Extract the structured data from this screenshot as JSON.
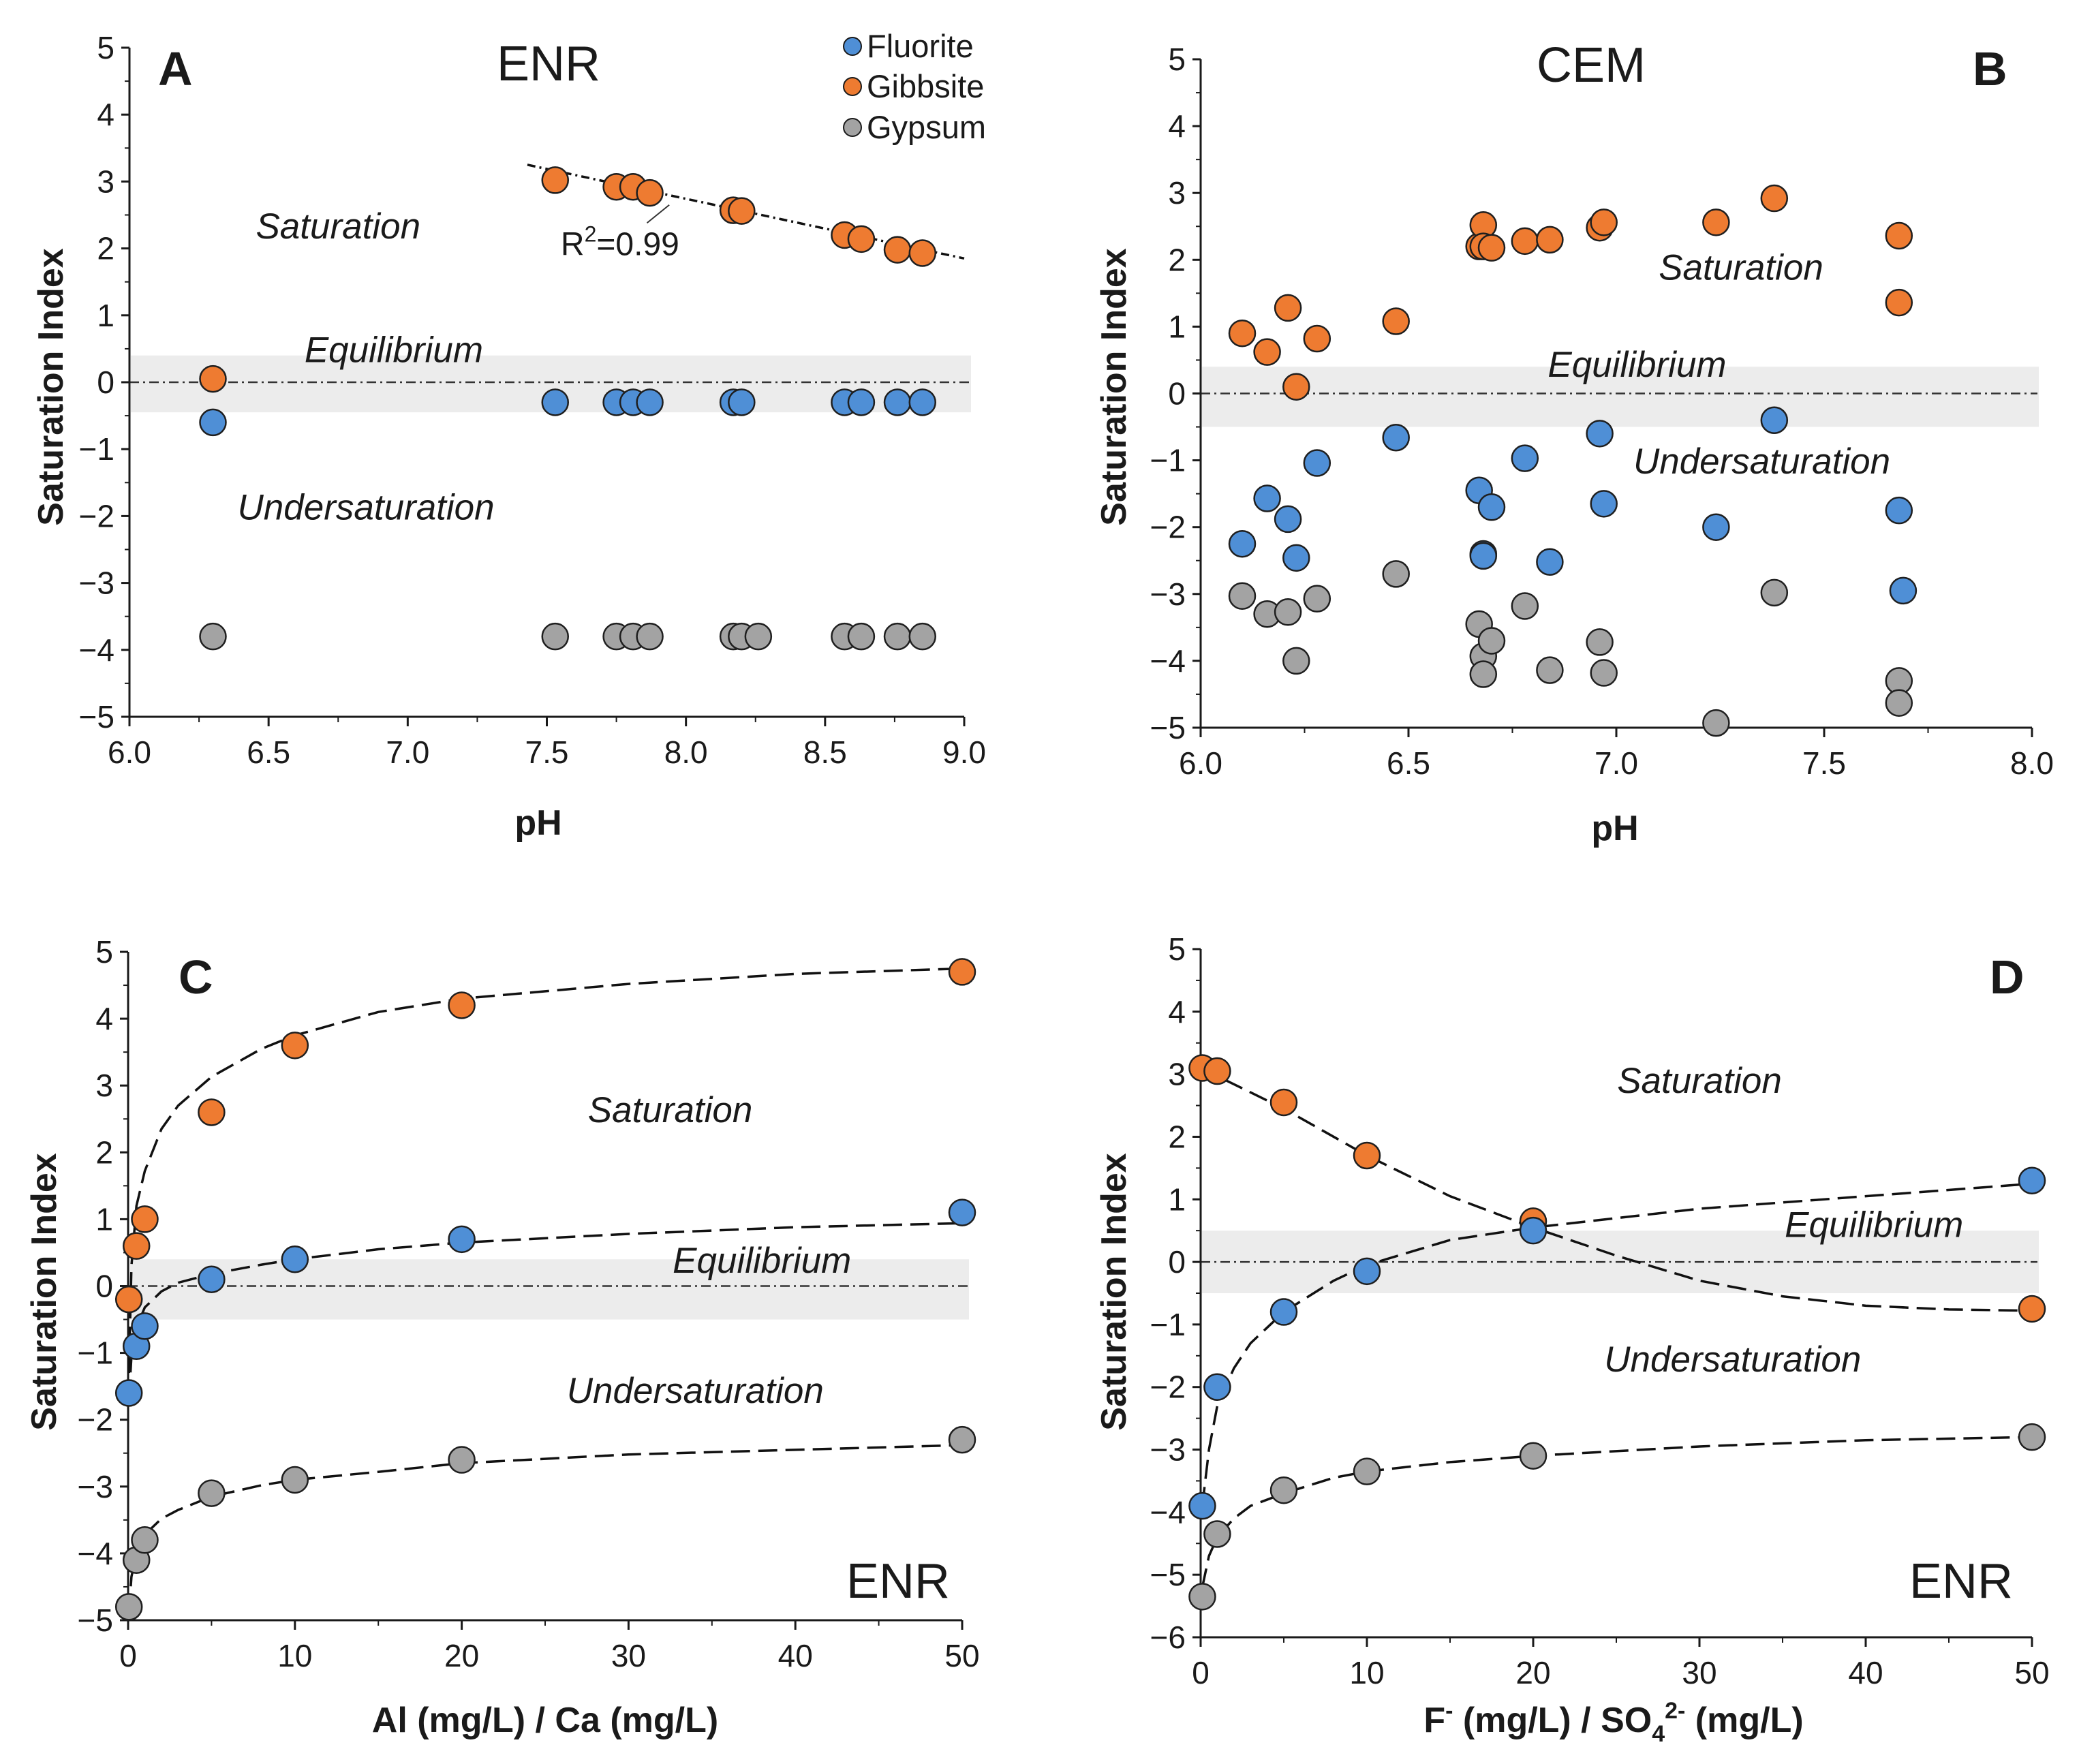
{
  "colors": {
    "fluorite": "#4f8fd6",
    "gibbsite": "#ee7b31",
    "gypsum": "#a3a3a3",
    "band": "#ececec",
    "axis": "#1a1a1a"
  },
  "legend": {
    "items": [
      {
        "name": "Fluorite",
        "color": "#4f8fd6"
      },
      {
        "name": "Gibbsite",
        "color": "#ee7b31"
      },
      {
        "name": "Gypsum",
        "color": "#a3a3a3"
      }
    ]
  },
  "chart_data": [
    {
      "panel": "A",
      "type": "scatter",
      "title": "ENR",
      "xlabel": "pH",
      "ylabel": "Saturation Index",
      "xlim": [
        6.0,
        9.0
      ],
      "ylim": [
        -5,
        5
      ],
      "xticks": [
        "6.0",
        "6.5",
        "7.0",
        "7.5",
        "8.0",
        "8.5",
        "9.0"
      ],
      "xtick_values": [
        6.0,
        6.5,
        7.0,
        7.5,
        8.0,
        8.5,
        9.0
      ],
      "yticks": [
        "5",
        "4",
        "3",
        "2",
        "1",
        "0",
        "−1",
        "−2",
        "−3",
        "−4",
        "−5"
      ],
      "ytick_values": [
        5,
        4,
        3,
        2,
        1,
        0,
        -1,
        -2,
        -3,
        -4,
        -5
      ],
      "band": [
        -0.45,
        0.4
      ],
      "zones": [
        {
          "label": "Saturation",
          "x": 6.75,
          "y": 2.15
        },
        {
          "label": "Equilibrium",
          "x": 6.95,
          "y": 0.3
        },
        {
          "label": "Undersaturation",
          "x": 6.85,
          "y": -2.05
        }
      ],
      "annotation": {
        "label": "R",
        "sup": "2",
        "suffix": "=0.99",
        "x": 7.55,
        "y": 1.9,
        "line_from": [
          7.94,
          2.65
        ],
        "line_to": [
          7.86,
          2.38
        ]
      },
      "fit_lines": [
        {
          "style": "dashdot",
          "x": [
            7.43,
            9.0
          ],
          "y": [
            3.25,
            1.85
          ]
        }
      ],
      "series": [
        {
          "name": "Gibbsite",
          "color": "#ee7b31",
          "x": [
            6.3,
            7.53,
            7.75,
            7.81,
            7.87,
            8.17,
            8.2,
            8.57,
            8.63,
            8.76,
            8.85
          ],
          "y": [
            0.05,
            3.02,
            2.92,
            2.92,
            2.83,
            2.57,
            2.56,
            2.2,
            2.14,
            1.98,
            1.93
          ]
        },
        {
          "name": "Fluorite",
          "color": "#4f8fd6",
          "x": [
            6.3,
            7.53,
            7.75,
            7.81,
            7.87,
            8.17,
            8.2,
            8.57,
            8.63,
            8.76,
            8.85
          ],
          "y": [
            -0.6,
            -0.3,
            -0.3,
            -0.3,
            -0.3,
            -0.3,
            -0.3,
            -0.3,
            -0.3,
            -0.3,
            -0.3
          ]
        },
        {
          "name": "Gypsum",
          "color": "#a3a3a3",
          "x": [
            6.3,
            7.53,
            7.75,
            7.81,
            7.87,
            8.17,
            8.2,
            8.26,
            8.57,
            8.63,
            8.76,
            8.85
          ],
          "y": [
            -3.8,
            -3.8,
            -3.8,
            -3.8,
            -3.8,
            -3.8,
            -3.8,
            -3.8,
            -3.8,
            -3.8,
            -3.8,
            -3.8
          ]
        }
      ]
    },
    {
      "panel": "B",
      "type": "scatter",
      "title": "CEM",
      "xlabel": "pH",
      "ylabel": "Saturation Index",
      "xlim": [
        6.0,
        8.0
      ],
      "ylim": [
        -5,
        5
      ],
      "xticks": [
        "6.0",
        "6.5",
        "7.0",
        "7.5",
        "8.0"
      ],
      "xtick_values": [
        6.0,
        6.5,
        7.0,
        7.5,
        8.0
      ],
      "yticks": [
        "5",
        "4",
        "3",
        "2",
        "1",
        "0",
        "−1",
        "−2",
        "−3",
        "−4",
        "−5"
      ],
      "ytick_values": [
        5,
        4,
        3,
        2,
        1,
        0,
        -1,
        -2,
        -3,
        -4,
        -5
      ],
      "band": [
        -0.5,
        0.4
      ],
      "zones": [
        {
          "label": "Saturation",
          "x": 7.3,
          "y": 1.7
        },
        {
          "label": "Equilibrium",
          "x": 7.05,
          "y": 0.25
        },
        {
          "label": "Undersaturation",
          "x": 7.35,
          "y": -1.2
        }
      ],
      "fit_lines": [],
      "series": [
        {
          "name": "Gibbsite",
          "color": "#ee7b31",
          "x": [
            6.1,
            6.16,
            6.21,
            6.23,
            6.28,
            6.47,
            6.67,
            6.68,
            6.68,
            6.7,
            6.78,
            6.84,
            6.96,
            6.97,
            7.24,
            7.38,
            7.68,
            7.68
          ],
          "y": [
            0.9,
            0.62,
            1.28,
            0.1,
            0.82,
            1.08,
            2.2,
            2.52,
            2.2,
            2.18,
            2.28,
            2.3,
            2.48,
            2.56,
            2.56,
            2.92,
            2.36,
            1.36
          ]
        },
        {
          "name": "Fluorite",
          "color": "#4f8fd6",
          "x": [
            6.1,
            6.16,
            6.21,
            6.23,
            6.28,
            6.47,
            6.67,
            6.68,
            6.68,
            6.7,
            6.78,
            6.84,
            6.96,
            6.97,
            7.24,
            7.38,
            7.68,
            7.69
          ],
          "y": [
            -2.25,
            -1.57,
            -1.88,
            -2.46,
            -1.04,
            -0.66,
            -1.45,
            -2.4,
            -2.43,
            -1.7,
            -0.97,
            -2.52,
            -0.6,
            -1.65,
            -2.0,
            -0.4,
            -1.75,
            -2.95
          ]
        },
        {
          "name": "Gypsum",
          "color": "#a3a3a3",
          "x": [
            6.1,
            6.16,
            6.21,
            6.23,
            6.28,
            6.47,
            6.67,
            6.68,
            6.68,
            6.7,
            6.78,
            6.84,
            6.96,
            6.97,
            7.24,
            7.38,
            7.68,
            7.68
          ],
          "y": [
            -3.03,
            -3.3,
            -3.27,
            -4.0,
            -3.07,
            -2.7,
            -3.45,
            -3.93,
            -4.2,
            -3.7,
            -3.18,
            -4.14,
            -3.72,
            -4.18,
            -4.93,
            -2.98,
            -4.3,
            -4.63
          ]
        }
      ]
    },
    {
      "panel": "C",
      "type": "scatter",
      "title": "ENR",
      "xlabel": "Al (mg/L) / Ca (mg/L)",
      "ylabel": "Saturation Index",
      "xlim": [
        0,
        50
      ],
      "ylim": [
        -5,
        5
      ],
      "xticks": [
        "0",
        "10",
        "20",
        "30",
        "40",
        "50"
      ],
      "xtick_values": [
        0,
        10,
        20,
        30,
        40,
        50
      ],
      "yticks": [
        "5",
        "4",
        "3",
        "2",
        "1",
        "0",
        "−1",
        "−2",
        "−3",
        "−4",
        "−5"
      ],
      "ytick_values": [
        5,
        4,
        3,
        2,
        1,
        0,
        -1,
        -2,
        -3,
        -4,
        -5
      ],
      "band": [
        -0.5,
        0.4
      ],
      "zones": [
        {
          "label": "Saturation",
          "x": 32.5,
          "y": 2.45
        },
        {
          "label": "Equilibrium",
          "x": 38.0,
          "y": 0.2
        },
        {
          "label": "Undersaturation",
          "x": 34.0,
          "y": -1.75
        }
      ],
      "fit_lines": [
        {
          "style": "dashed",
          "x": [
            0.05,
            0.2,
            0.5,
            1,
            2,
            3,
            5,
            8,
            10,
            15,
            20,
            30,
            40,
            50
          ],
          "y": [
            -1.3,
            0.3,
            1.2,
            1.72,
            2.35,
            2.7,
            3.13,
            3.55,
            3.75,
            4.1,
            4.3,
            4.52,
            4.67,
            4.75
          ]
        },
        {
          "style": "dashed",
          "x": [
            0.05,
            0.2,
            0.5,
            1,
            2,
            3,
            5,
            8,
            10,
            15,
            20,
            30,
            40,
            50
          ],
          "y": [
            -1.7,
            -1.05,
            -0.62,
            -0.32,
            -0.08,
            0.05,
            0.18,
            0.32,
            0.4,
            0.55,
            0.65,
            0.78,
            0.88,
            0.94
          ]
        },
        {
          "style": "dashed",
          "x": [
            0.05,
            0.2,
            0.5,
            1,
            2,
            3,
            5,
            8,
            10,
            15,
            20,
            30,
            40,
            50
          ],
          "y": [
            -4.9,
            -4.35,
            -4.0,
            -3.72,
            -3.48,
            -3.35,
            -3.15,
            -2.98,
            -2.9,
            -2.78,
            -2.65,
            -2.52,
            -2.45,
            -2.38
          ]
        }
      ],
      "series": [
        {
          "name": "Gibbsite",
          "color": "#ee7b31",
          "x": [
            0.05,
            0.5,
            1,
            5,
            10,
            20,
            50
          ],
          "y": [
            -0.2,
            0.6,
            1.0,
            2.6,
            3.6,
            4.2,
            4.7
          ]
        },
        {
          "name": "Fluorite",
          "color": "#4f8fd6",
          "x": [
            0.05,
            0.5,
            1,
            5,
            10,
            20,
            50
          ],
          "y": [
            -1.6,
            -0.9,
            -0.6,
            0.1,
            0.4,
            0.7,
            1.1
          ]
        },
        {
          "name": "Gypsum",
          "color": "#a3a3a3",
          "x": [
            0.05,
            0.5,
            1,
            5,
            10,
            20,
            50
          ],
          "y": [
            -4.8,
            -4.1,
            -3.8,
            -3.1,
            -2.9,
            -2.6,
            -2.3
          ]
        }
      ],
      "watermark": "ENR"
    },
    {
      "panel": "D",
      "type": "scatter",
      "title": "ENR",
      "xlabel_parts": {
        "a": "F",
        "a_sup": "-",
        "b": " (mg/L) / SO",
        "b_sub": "4",
        "b_sup": "2-",
        "c": " (mg/L)"
      },
      "ylabel": "Saturation Index",
      "xlim": [
        0,
        50
      ],
      "ylim": [
        -6,
        5
      ],
      "xticks": [
        "0",
        "10",
        "20",
        "30",
        "40",
        "50"
      ],
      "xtick_values": [
        0,
        10,
        20,
        30,
        40,
        50
      ],
      "yticks": [
        "5",
        "4",
        "3",
        "2",
        "1",
        "0",
        "−1",
        "−2",
        "−3",
        "−4",
        "−5",
        "−6"
      ],
      "ytick_values": [
        5,
        4,
        3,
        2,
        1,
        0,
        -1,
        -2,
        -3,
        -4,
        -5,
        -6
      ],
      "band": [
        -0.5,
        0.5
      ],
      "zones": [
        {
          "label": "Saturation",
          "x": 30.0,
          "y": 2.7
        },
        {
          "label": "Equilibrium",
          "x": 40.5,
          "y": 0.4
        },
        {
          "label": "Undersaturation",
          "x": 32.0,
          "y": -1.75
        }
      ],
      "fit_lines": [
        {
          "style": "dashed",
          "x": [
            0,
            5,
            10,
            15,
            20,
            25,
            30,
            35,
            40,
            45,
            50
          ],
          "y": [
            3.1,
            2.45,
            1.7,
            1.05,
            0.55,
            0.1,
            -0.3,
            -0.55,
            -0.7,
            -0.76,
            -0.78
          ]
        },
        {
          "style": "dashed",
          "x": [
            0.1,
            0.5,
            1,
            2,
            3,
            5,
            8,
            10,
            15,
            20,
            30,
            40,
            50
          ],
          "y": [
            -3.9,
            -3.0,
            -2.3,
            -1.7,
            -1.3,
            -0.8,
            -0.3,
            -0.05,
            0.35,
            0.55,
            0.85,
            1.05,
            1.25
          ]
        },
        {
          "style": "dashed",
          "x": [
            0.1,
            0.5,
            1,
            2,
            3,
            5,
            8,
            10,
            15,
            20,
            30,
            40,
            50
          ],
          "y": [
            -5.2,
            -4.7,
            -4.4,
            -4.1,
            -3.9,
            -3.7,
            -3.45,
            -3.35,
            -3.2,
            -3.1,
            -2.95,
            -2.85,
            -2.8
          ]
        }
      ],
      "series": [
        {
          "name": "Gibbsite",
          "color": "#ee7b31",
          "x": [
            0.1,
            1,
            5,
            10,
            20,
            50
          ],
          "y": [
            3.1,
            3.05,
            2.55,
            1.7,
            0.65,
            -0.75
          ]
        },
        {
          "name": "Fluorite",
          "color": "#4f8fd6",
          "x": [
            0.1,
            1,
            5,
            10,
            20,
            50
          ],
          "y": [
            -3.9,
            -2.0,
            -0.8,
            -0.15,
            0.5,
            1.3
          ]
        },
        {
          "name": "Gypsum",
          "color": "#a3a3a3",
          "x": [
            0.1,
            1,
            5,
            10,
            20,
            50
          ],
          "y": [
            -5.35,
            -4.35,
            -3.65,
            -3.35,
            -3.1,
            -2.8
          ]
        }
      ],
      "watermark": "ENR"
    }
  ]
}
